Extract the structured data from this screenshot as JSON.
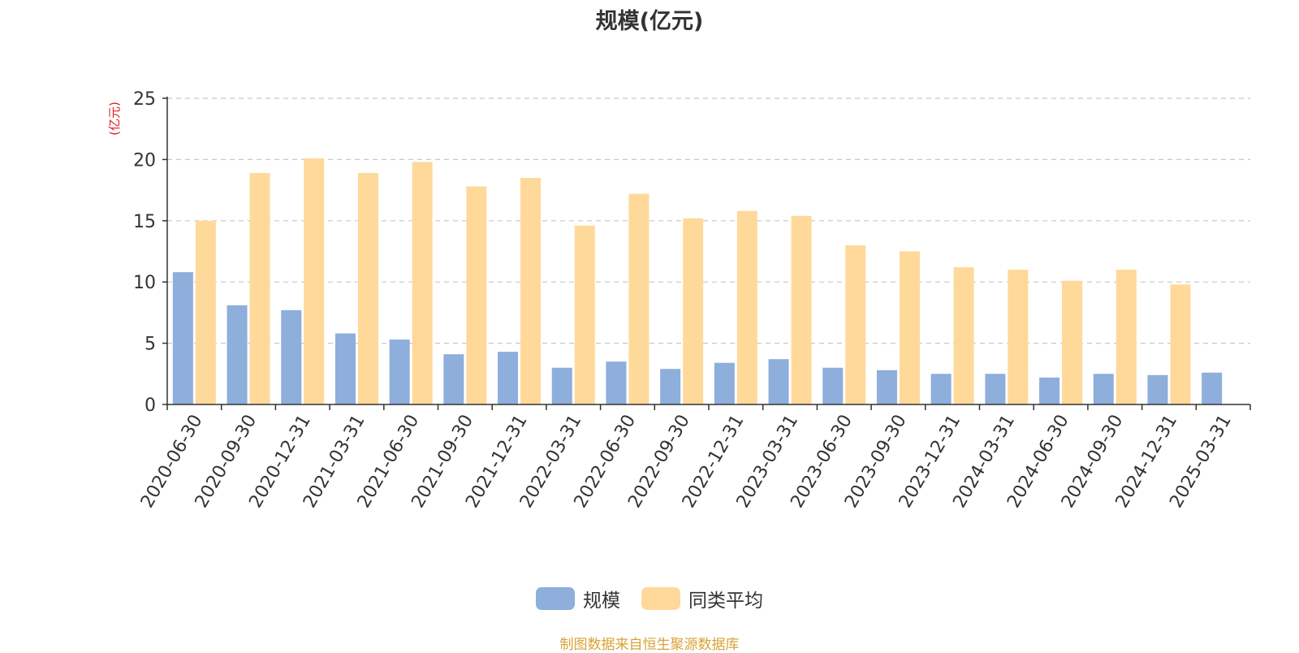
{
  "chart_data": {
    "type": "bar",
    "title": "规模(亿元)",
    "ylabel": "(亿元)",
    "ylim": [
      0,
      25
    ],
    "yticks": [
      0,
      5,
      10,
      15,
      20,
      25
    ],
    "grid": true,
    "legend_position": "bottom",
    "categories": [
      "2020-06-30",
      "2020-09-30",
      "2020-12-31",
      "2021-03-31",
      "2021-06-30",
      "2021-09-30",
      "2021-12-31",
      "2022-03-31",
      "2022-06-30",
      "2022-09-30",
      "2022-12-31",
      "2023-03-31",
      "2023-06-30",
      "2023-09-30",
      "2023-12-31",
      "2024-03-31",
      "2024-06-30",
      "2024-09-30",
      "2024-12-31",
      "2025-03-31"
    ],
    "series": [
      {
        "name": "规模",
        "color": "#8eaedb",
        "values": [
          10.8,
          8.1,
          7.7,
          5.8,
          5.3,
          4.1,
          4.3,
          3.0,
          3.5,
          2.9,
          3.4,
          3.7,
          3.0,
          2.8,
          2.5,
          2.5,
          2.2,
          2.5,
          2.4,
          2.6
        ]
      },
      {
        "name": "同类平均",
        "color": "#ffd99a",
        "values": [
          15.0,
          18.9,
          20.1,
          18.9,
          19.8,
          17.8,
          18.5,
          14.6,
          17.2,
          15.2,
          15.8,
          15.4,
          13.0,
          12.5,
          11.2,
          11.0,
          10.1,
          11.0,
          9.8,
          null
        ]
      }
    ]
  },
  "footer": "制图数据来自恒生聚源数据库"
}
